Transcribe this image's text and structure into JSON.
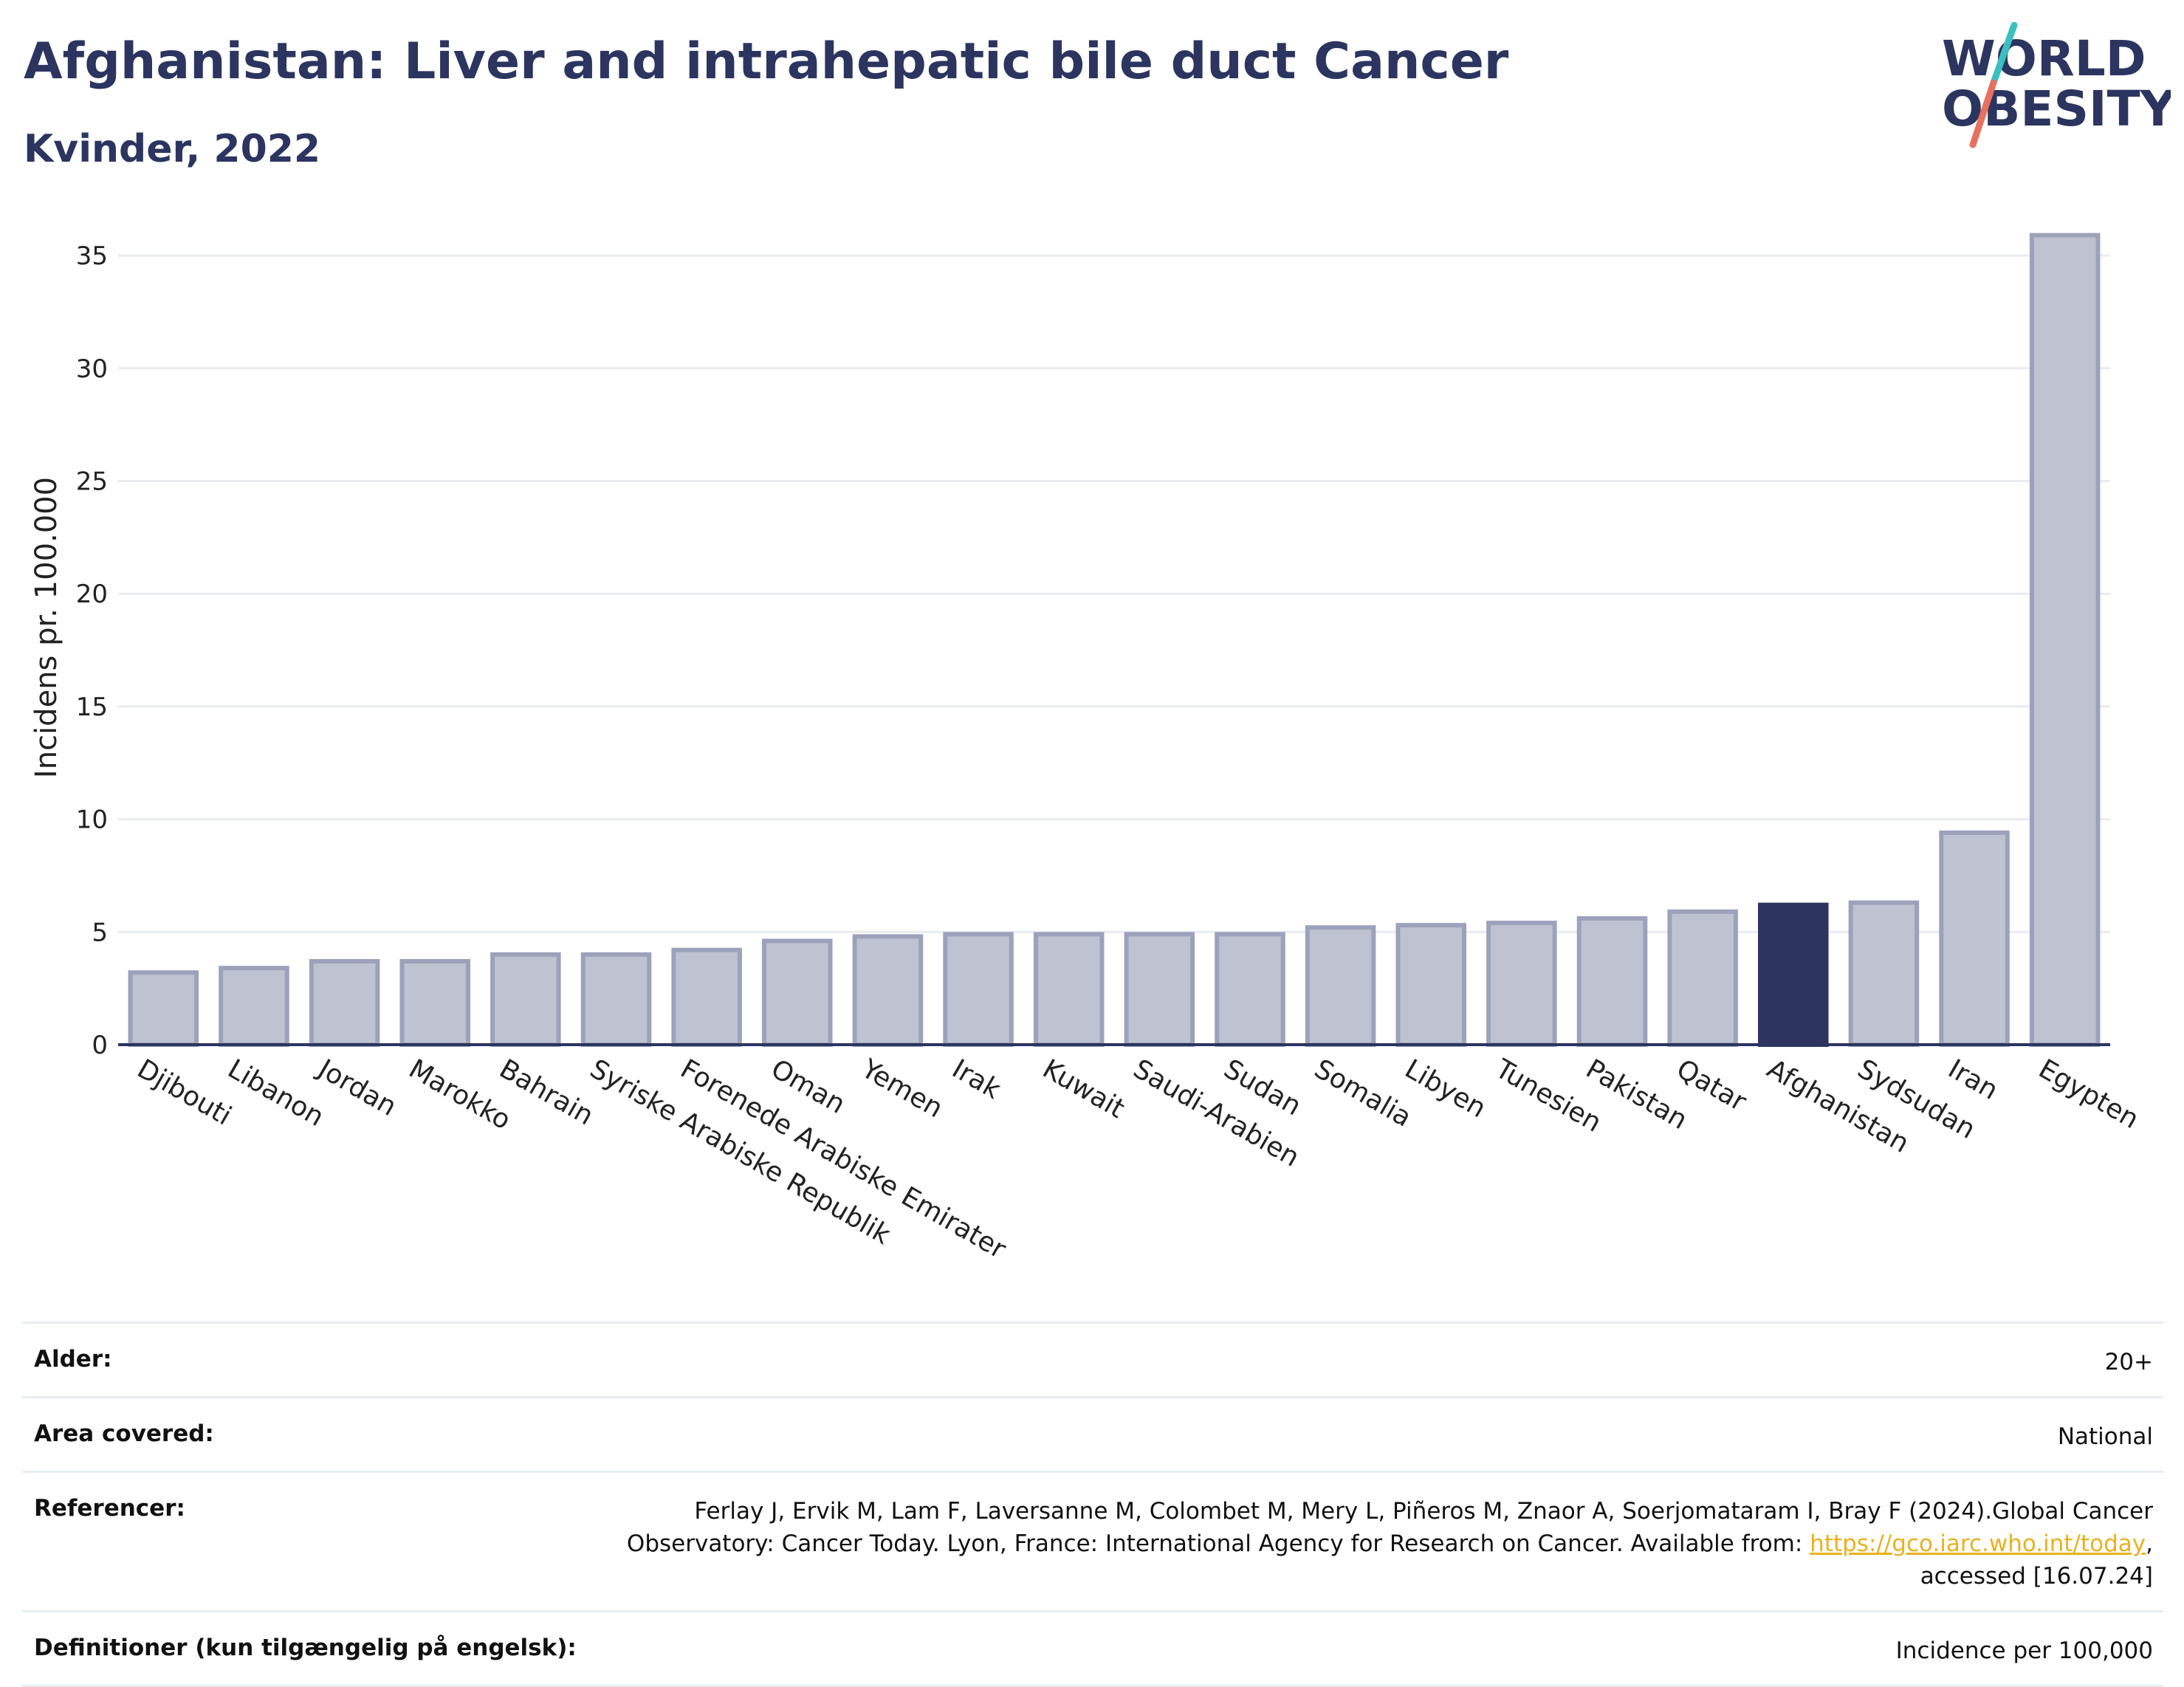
{
  "header": {
    "title": "Afghanistan: Liver and intrahepatic bile duct Cancer",
    "subtitle": "Kvinder, 2022"
  },
  "logo": {
    "line1": "WORLD",
    "line2": "OBESITY",
    "slash_colors": [
      "#3cbfbf",
      "#e8705f"
    ]
  },
  "chart_data": {
    "type": "bar",
    "ylabel": "Incidens pr. 100.000",
    "ylim": [
      0,
      37
    ],
    "yticks": [
      0,
      5,
      10,
      15,
      20,
      25,
      30,
      35
    ],
    "grid": true,
    "categories": [
      "Djibouti",
      "Libanon",
      "Jordan",
      "Marokko",
      "Bahrain",
      "Syriske Arabiske Republik",
      "Forenede Arabiske Emirater",
      "Oman",
      "Yemen",
      "Irak",
      "Kuwait",
      "Saudi-Arabien",
      "Sudan",
      "Somalia",
      "Libyen",
      "Tunesien",
      "Pakistan",
      "Qatar",
      "Afghanistan",
      "Sydsudan",
      "Iran",
      "Egypten"
    ],
    "values": [
      3.2,
      3.4,
      3.7,
      3.7,
      4.0,
      4.0,
      4.2,
      4.6,
      4.8,
      4.9,
      4.9,
      4.9,
      4.9,
      5.2,
      5.3,
      5.4,
      5.6,
      5.9,
      6.2,
      6.3,
      9.4,
      35.9
    ],
    "highlight": "Afghanistan",
    "colors": {
      "bar": "#bfc2d0",
      "bar_border": "#9ca2bb",
      "highlight": "#2b3560",
      "grid": "#e8ecf1",
      "axis": "#2b3560"
    }
  },
  "footer": {
    "rows": [
      {
        "label": "Alder:",
        "value": "20+"
      },
      {
        "label": "Area covered:",
        "value": "National"
      },
      {
        "label": "Referencer:",
        "value_line1": "Ferlay J, Ervik M, Lam F, Laversanne M, Colombet M, Mery L, Piñeros M, Znaor A, Soerjomataram I, Bray F (2024).Global Cancer",
        "value_line2_pre": "Observatory: Cancer Today. Lyon, France: International Agency for Research on Cancer. Available from: ",
        "link": "https://gco.iarc.who.int/today",
        "value_line2_post": ",",
        "value_line3": "accessed [16.07.24]"
      },
      {
        "label": "Definitioner (kun tilgængelig på engelsk):",
        "value": "Incidence per 100,000"
      }
    ]
  }
}
